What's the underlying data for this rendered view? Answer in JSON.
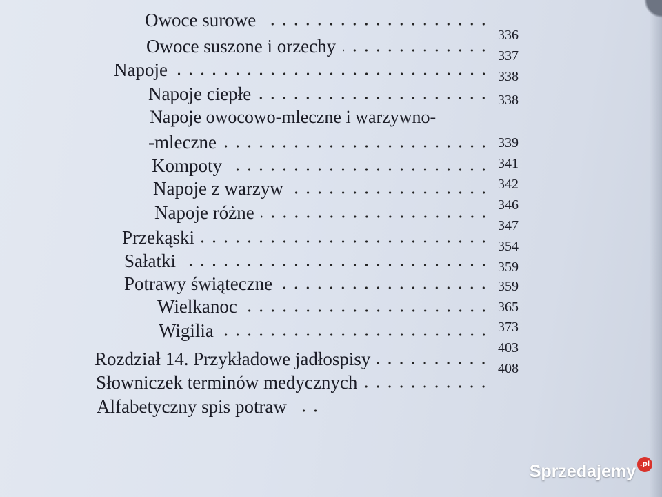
{
  "toc": {
    "entries": [
      {
        "title": "Owoce surowe",
        "page": "336"
      },
      {
        "title": "Owoce suszone i orzechy",
        "page": "337"
      },
      {
        "title": "Napoje",
        "page": "338"
      },
      {
        "title": "Napoje ciepłe",
        "page": "338"
      },
      {
        "title": "Napoje owocowo-mleczne i warzywno-",
        "continuation": "-mleczne",
        "page": "339"
      },
      {
        "title": "Kompoty",
        "page": "341"
      },
      {
        "title": "Napoje z warzyw",
        "page": "342"
      },
      {
        "title": "Napoje różne",
        "page": "346"
      },
      {
        "title": "Przekąski",
        "page": "347"
      },
      {
        "title": "Sałatki",
        "page": "354"
      },
      {
        "title": "Potrawy świąteczne",
        "page": "359"
      },
      {
        "title": "Wielkanoc",
        "page": "359"
      },
      {
        "title": "Wigilia",
        "page": "365"
      },
      {
        "title": "Rozdział 14. Przykładowe jadłospisy",
        "page": "373"
      },
      {
        "title": "Słowniczek terminów medycznych",
        "page": "403"
      },
      {
        "title": "Alfabetyczny spis potraw",
        "page": "408"
      }
    ]
  },
  "watermark": {
    "brand": "Sprzedajemy",
    "tld": ".pl",
    "brand_color": "#d9322b"
  }
}
